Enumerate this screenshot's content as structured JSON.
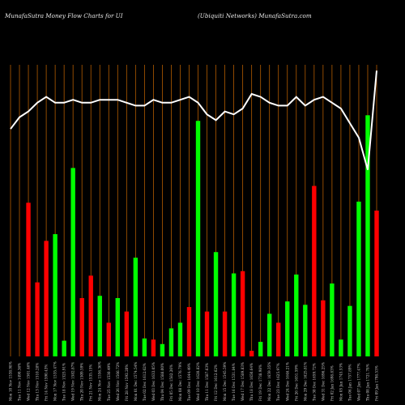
{
  "header": {
    "title_left": "MunafaSutra  Money Flow  Charts for UI",
    "title_right": "(Ubiquiti   Networks) MunafaSutra.com"
  },
  "chart_data": {
    "type": "bar",
    "title": "MunafaSutra  Money Flow  Charts for UI",
    "subtitle": "(Ubiquiti   Networks) MunafaSutra.com",
    "grid": true,
    "colors": {
      "up": "#00ff00",
      "down": "#ff0000",
      "grid": "#b35c00",
      "line": "#ffffff",
      "background": "#000000"
    },
    "categories": [
      "Fri 09 Jan 1798.53%",
      "Thu 08 Jan 1721.78%",
      "Wed 07 Jan 1777.47%",
      "Tue 06 Jan 1757.89%",
      "Mon 05 Jan 1745.53%",
      "Fri 02 Jan 1698.83%",
      "Wed 31 Dec 1696.25%",
      "Tue 30 Dec 1659.72%",
      "Mon 29 Dec 1625.81%",
      "Fri 26 Dec 1651.59%",
      "Wed 24 Dec 1646.21%",
      "Tue 23 Dec 1625.97%",
      "Mon 22 Dec 1659.35%",
      "Fri 19 Dec 1738.98%",
      "Thu 18 Dec 1650.64%",
      "Wed 17 Dec 1589.83%",
      "Tue 16 Dec 1531.84%",
      "Mon 15 Dec 1545.59%",
      "Fri 12 Dec 1612.62%",
      "Thu 11 Dec 1587.63%",
      "Wed 10 Dec 1620.82%",
      "Tue 09 Dec 1644.49%",
      "Mon 08 Dec 1576.79%",
      "Fri 05 Dec 1582.26%",
      "Thu 04 Dec 1588.00%",
      "Wed 03 Dec 1633.05%",
      "Tue 02 Dec 1612.62%",
      "Mon 01 Dec 1574.54%",
      "Fri 28 Nov 1592.20%",
      "Wed 26 Nov 1566.72%",
      "Tue 25 Nov 1530.49%",
      "Mon 24 Nov 1556.36%",
      "Fri 21 Nov 1535.15%",
      "Thu 20 Nov 1509.59%",
      "Wed 19 Nov 1582.87%",
      "Tue 18 Nov 1525.91%",
      "Mon 17 Nov 1535.47%",
      "Fri 14 Nov 1590.43%",
      "Thu 13 Nov 1510.28%",
      "Wed 12 Nov 1501.46%",
      "Tue 11 Nov 1490.36%",
      "Mon 10 Nov 1538.98%"
    ],
    "flow": [
      "down",
      "up",
      "up",
      "up",
      "up",
      "up",
      "down",
      "down",
      "up",
      "up",
      "up",
      "down",
      "up",
      "up",
      "down",
      "down",
      "up",
      "down",
      "up",
      "down",
      "up",
      "down",
      "up",
      "up",
      "up",
      "down",
      "up",
      "up",
      "down",
      "up",
      "down",
      "up",
      "down",
      "down",
      "up",
      "up",
      "up",
      "down",
      "down",
      "down",
      "up",
      "down"
    ],
    "money_flow": [
      130,
      215,
      138,
      45,
      15,
      65,
      50,
      152,
      46,
      73,
      49,
      30,
      38,
      13,
      5,
      76,
      74,
      40,
      93,
      40,
      210,
      44,
      30,
      25,
      11,
      15,
      16,
      88,
      40,
      52,
      30,
      54,
      72,
      52,
      168,
      14,
      109,
      103,
      66,
      137,
      0,
      0
    ],
    "price": [
      1798.53,
      1721.78,
      1777.47,
      1757.89,
      1745.53,
      1698.83,
      1696.25,
      1659.72,
      1625.81,
      1651.59,
      1646.21,
      1625.97,
      1659.35,
      1738.98,
      1650.64,
      1589.83,
      1531.84,
      1545.59,
      1612.62,
      1587.63,
      1620.82,
      1644.49,
      1576.79,
      1582.26,
      1588.0,
      1633.05,
      1612.62,
      1574.54,
      1592.2,
      1566.72,
      1530.49,
      1556.36,
      1535.15,
      1509.59,
      1582.87,
      1525.91,
      1535.47,
      1590.43,
      1510.28,
      1501.46,
      1490.36,
      1538.98
    ],
    "line_series": [
      0.98,
      0.64,
      0.75,
      0.8,
      0.85,
      0.87,
      0.89,
      0.88,
      0.86,
      0.89,
      0.86,
      0.86,
      0.87,
      0.89,
      0.9,
      0.85,
      0.83,
      0.84,
      0.81,
      0.83,
      0.87,
      0.89,
      0.88,
      0.87,
      0.87,
      0.88,
      0.86,
      0.86,
      0.87,
      0.88,
      0.88,
      0.88,
      0.87,
      0.87,
      0.88,
      0.87,
      0.87,
      0.89,
      0.87,
      0.84,
      0.82,
      0.78
    ]
  }
}
